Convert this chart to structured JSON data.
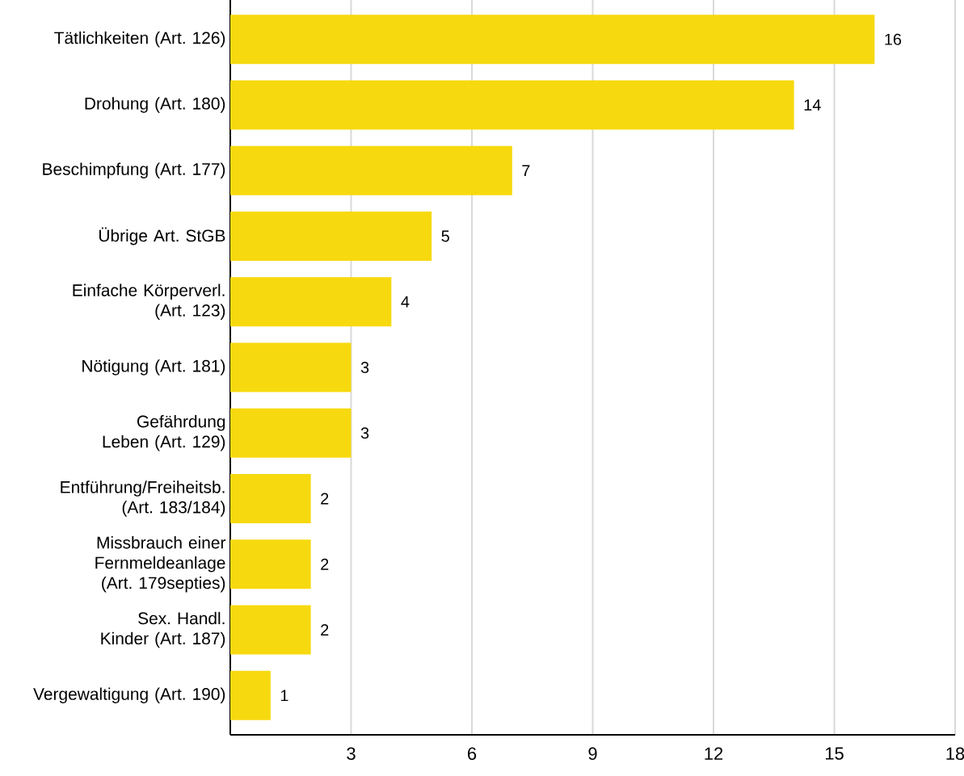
{
  "chart_data": {
    "type": "bar",
    "orientation": "horizontal",
    "categories": [
      "Tätlichkeiten (Art. 126)",
      "Drohung (Art. 180)",
      "Beschimpfung (Art. 177)",
      "Übrige Art. StGB",
      "Einfache Körperverl. (Art. 123)",
      "Nötigung (Art. 181)",
      "Gefährdung Leben (Art. 129)",
      "Entführung/Freiheitsb. (Art. 183/184)",
      "Missbrauch einer Fernmeldeanlage (Art. 179septies)",
      "Sex. Handl. Kinder (Art. 187)",
      "Vergewaltigung (Art. 190)"
    ],
    "values": [
      16,
      14,
      7,
      5,
      4,
      3,
      3,
      2,
      2,
      2,
      1
    ],
    "color": "#f7d90f",
    "xlim": [
      0,
      18
    ],
    "xticks": [
      3,
      6,
      9,
      12,
      15,
      18
    ],
    "grid": "x",
    "data_labels": true
  }
}
